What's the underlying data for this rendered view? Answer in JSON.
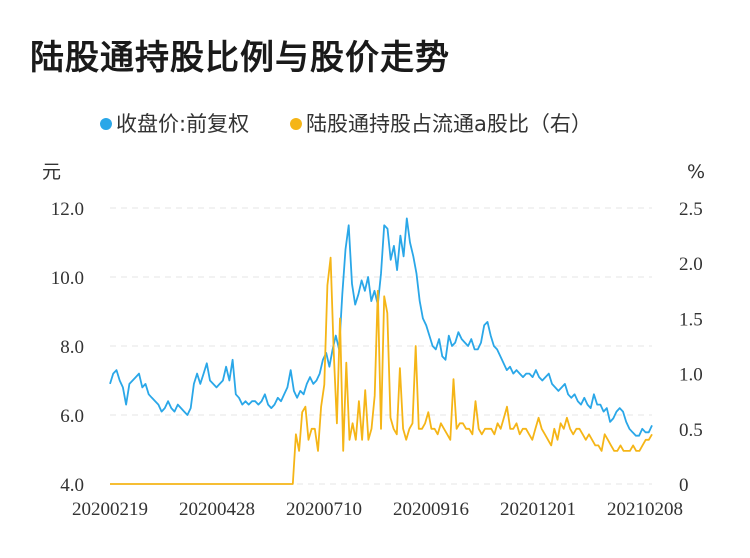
{
  "title": "陆股通持股比例与股价走势",
  "colors": {
    "price": "#2aa7e8",
    "ratio": "#f5b517",
    "grid": "#e6e6e6"
  },
  "chart_data": {
    "type": "line",
    "title": "陆股通持股比例与股价走势",
    "legend_position": "top",
    "grid": true,
    "y_left": {
      "unit": "元",
      "ticks": [
        "12.0",
        "10.0",
        "8.0",
        "6.0",
        "4.0"
      ],
      "range": [
        4.0,
        12.0
      ]
    },
    "y_right": {
      "unit": "%",
      "ticks": [
        "2.5",
        "2.0",
        "1.5",
        "1.0",
        "0.5",
        "0"
      ],
      "range": [
        0,
        2.5
      ]
    },
    "x_ticks": [
      "20200219",
      "20200428",
      "20200710",
      "20200916",
      "20201201",
      "20210208"
    ],
    "series": [
      {
        "name": "收盘价:前复权",
        "axis": "left",
        "color": "#2aa7e8",
        "values": [
          6.9,
          7.2,
          7.3,
          7.0,
          6.8,
          6.3,
          6.9,
          7.0,
          7.1,
          7.2,
          6.8,
          6.9,
          6.6,
          6.5,
          6.4,
          6.3,
          6.1,
          6.2,
          6.4,
          6.2,
          6.1,
          6.3,
          6.2,
          6.1,
          6.0,
          6.2,
          6.9,
          7.2,
          6.9,
          7.2,
          7.5,
          7.0,
          6.9,
          6.8,
          6.9,
          7.0,
          7.4,
          7.0,
          7.6,
          6.6,
          6.5,
          6.3,
          6.4,
          6.3,
          6.4,
          6.4,
          6.3,
          6.4,
          6.6,
          6.3,
          6.2,
          6.3,
          6.5,
          6.4,
          6.6,
          6.8,
          7.3,
          6.7,
          6.5,
          6.7,
          6.6,
          6.9,
          7.1,
          6.9,
          7.0,
          7.2,
          7.6,
          7.8,
          7.4,
          7.9,
          8.3,
          7.9,
          9.5,
          10.8,
          11.5,
          9.8,
          9.2,
          9.5,
          9.9,
          9.6,
          10.0,
          9.3,
          9.6,
          9.2,
          10.1,
          11.5,
          11.4,
          10.5,
          10.9,
          10.2,
          11.2,
          10.6,
          11.7,
          11.0,
          10.6,
          10.1,
          9.3,
          8.8,
          8.6,
          8.3,
          8.0,
          7.9,
          8.2,
          7.7,
          7.6,
          8.3,
          8.0,
          8.1,
          8.4,
          8.2,
          8.1,
          8.0,
          8.2,
          7.9,
          7.9,
          8.1,
          8.6,
          8.7,
          8.3,
          8.0,
          7.9,
          7.7,
          7.5,
          7.3,
          7.4,
          7.2,
          7.3,
          7.2,
          7.1,
          7.2,
          7.2,
          7.1,
          7.3,
          7.1,
          7.0,
          7.1,
          7.2,
          6.9,
          6.8,
          6.7,
          6.8,
          6.9,
          6.6,
          6.5,
          6.6,
          6.4,
          6.3,
          6.5,
          6.3,
          6.2,
          6.6,
          6.3,
          6.3,
          6.1,
          6.2,
          5.8,
          5.9,
          6.1,
          6.2,
          6.1,
          5.8,
          5.6,
          5.5,
          5.4,
          5.4,
          5.6,
          5.5,
          5.5,
          5.7
        ]
      },
      {
        "name": "陆股通持股占流通a股比（右）",
        "axis": "right",
        "color": "#f5b517",
        "values": [
          0.0,
          0.0,
          0.0,
          0.0,
          0.0,
          0.0,
          0.0,
          0.0,
          0.0,
          0.0,
          0.0,
          0.0,
          0.0,
          0.0,
          0.0,
          0.0,
          0.0,
          0.0,
          0.0,
          0.0,
          0.0,
          0.0,
          0.0,
          0.0,
          0.0,
          0.0,
          0.0,
          0.0,
          0.0,
          0.0,
          0.0,
          0.0,
          0.0,
          0.0,
          0.0,
          0.0,
          0.0,
          0.0,
          0.0,
          0.0,
          0.0,
          0.0,
          0.0,
          0.0,
          0.0,
          0.0,
          0.0,
          0.0,
          0.0,
          0.0,
          0.0,
          0.0,
          0.0,
          0.0,
          0.0,
          0.0,
          0.0,
          0.0,
          0.0,
          0.45,
          0.3,
          0.65,
          0.7,
          0.4,
          0.5,
          0.5,
          0.3,
          0.7,
          0.9,
          1.8,
          2.05,
          1.2,
          0.55,
          1.5,
          0.3,
          1.1,
          0.4,
          0.55,
          0.4,
          0.75,
          0.4,
          0.85,
          0.4,
          0.5,
          0.8,
          1.75,
          0.5,
          1.7,
          1.55,
          0.6,
          0.5,
          0.45,
          1.05,
          0.5,
          0.4,
          0.5,
          0.55,
          1.25,
          0.5,
          0.5,
          0.55,
          0.65,
          0.5,
          0.5,
          0.45,
          0.55,
          0.5,
          0.45,
          0.4,
          0.95,
          0.5,
          0.55,
          0.55,
          0.5,
          0.5,
          0.45,
          0.75,
          0.5,
          0.45,
          0.5,
          0.5,
          0.5,
          0.45,
          0.55,
          0.5,
          0.6,
          0.7,
          0.5,
          0.5,
          0.55,
          0.45,
          0.5,
          0.5,
          0.45,
          0.4,
          0.5,
          0.6,
          0.5,
          0.45,
          0.4,
          0.35,
          0.5,
          0.4,
          0.55,
          0.5,
          0.6,
          0.5,
          0.45,
          0.5,
          0.5,
          0.45,
          0.4,
          0.45,
          0.4,
          0.35,
          0.35,
          0.3,
          0.45,
          0.4,
          0.35,
          0.3,
          0.3,
          0.35,
          0.3,
          0.3,
          0.3,
          0.35,
          0.3,
          0.3,
          0.35,
          0.4,
          0.4,
          0.45
        ]
      }
    ]
  }
}
